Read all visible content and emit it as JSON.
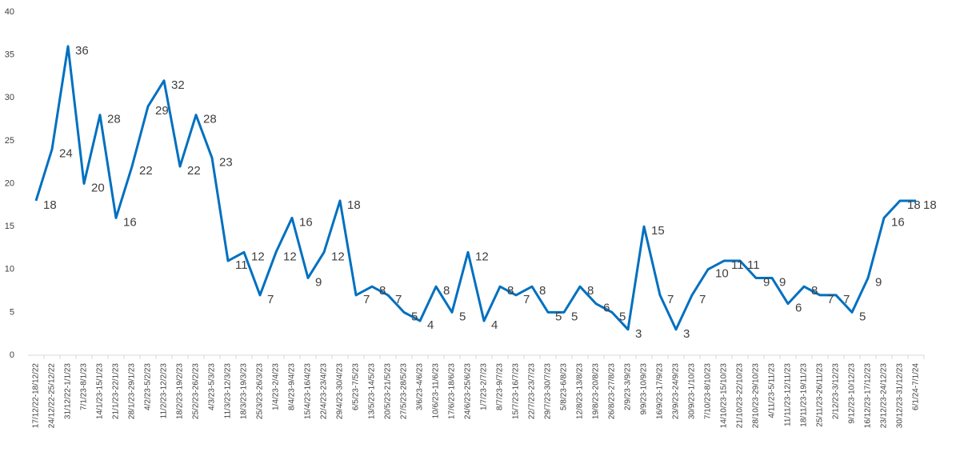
{
  "chart_data": {
    "type": "line",
    "categories": [
      "17/12/22-18/12/22",
      "24/12/22-25/12/22",
      "31/12/22-1/1/23",
      "7/1/23-8/1/23",
      "14/1/23-15/1/23",
      "21/1/23-22/1/23",
      "28/1/23-29/1/23",
      "4/2/23-5/2/23",
      "11/2/23-12/2/23",
      "18/2/23-19/2/23",
      "25/2/23-26/2/23",
      "4/3/23-5/3/23",
      "11/3/23-12/3/23",
      "18/3/23-19/3/23",
      "25/3/23-26/3/23",
      "1/4/23-2/4/23",
      "8/4/23-9/4/23",
      "15/4/23-16/4/23",
      "22/4/23-23/4/23",
      "29/4/23-30/4/23",
      "6/5/23-7/5/23",
      "13/5/23-14/5/23",
      "20/5/23-21/5/23",
      "27/5/23-28/5/23",
      "3/6/23-4/6/23",
      "10/6/23-11/6/23",
      "17/6/23-18/6/23",
      "24/6/23-25/6/23",
      "1/7/23-2/7/23",
      "8/7/23-9/7/23",
      "15/7/23-16/7/23",
      "22/7/23-23/7/23",
      "29/7/23-30/7/23",
      "5/8/23-6/8/23",
      "12/8/23-13/8/23",
      "19/8/23-20/8/23",
      "26/8/23-27/8/23",
      "2/9/23-3/9/23",
      "9/9/23-10/9/23",
      "16/9/23-17/9/23",
      "23/9/23-24/9/23",
      "30/9/23-1/10/23",
      "7/10/23-8/10/23",
      "14/10/23-15/10/23",
      "21/10/23-22/10/23",
      "28/10/23-29/10/23",
      "4/11/23-5/11/23",
      "11/11/23-12/11/23",
      "18/11/23-19/11/23",
      "25/11/23-26/11/23",
      "2/12/23-3/12/23",
      "9/12/23-10/12/23",
      "16/12/23-17/12/23",
      "23/12/23-24/12/23",
      "30/12/23-31/12/23",
      "6/1/24-7/1/24"
    ],
    "values": [
      18,
      24,
      36,
      20,
      28,
      16,
      22,
      29,
      32,
      22,
      28,
      23,
      11,
      12,
      7,
      12,
      16,
      9,
      12,
      18,
      7,
      8,
      7,
      5,
      4,
      8,
      5,
      12,
      4,
      8,
      7,
      8,
      5,
      5,
      8,
      6,
      5,
      3,
      15,
      7,
      3,
      7,
      10,
      11,
      11,
      9,
      9,
      6,
      8,
      7,
      7,
      5,
      9,
      16,
      18,
      18
    ],
    "color": "#0070c0",
    "ylim": [
      0,
      40
    ],
    "yticks": [
      0,
      5,
      10,
      15,
      20,
      25,
      30,
      35,
      40
    ],
    "grid": false
  }
}
